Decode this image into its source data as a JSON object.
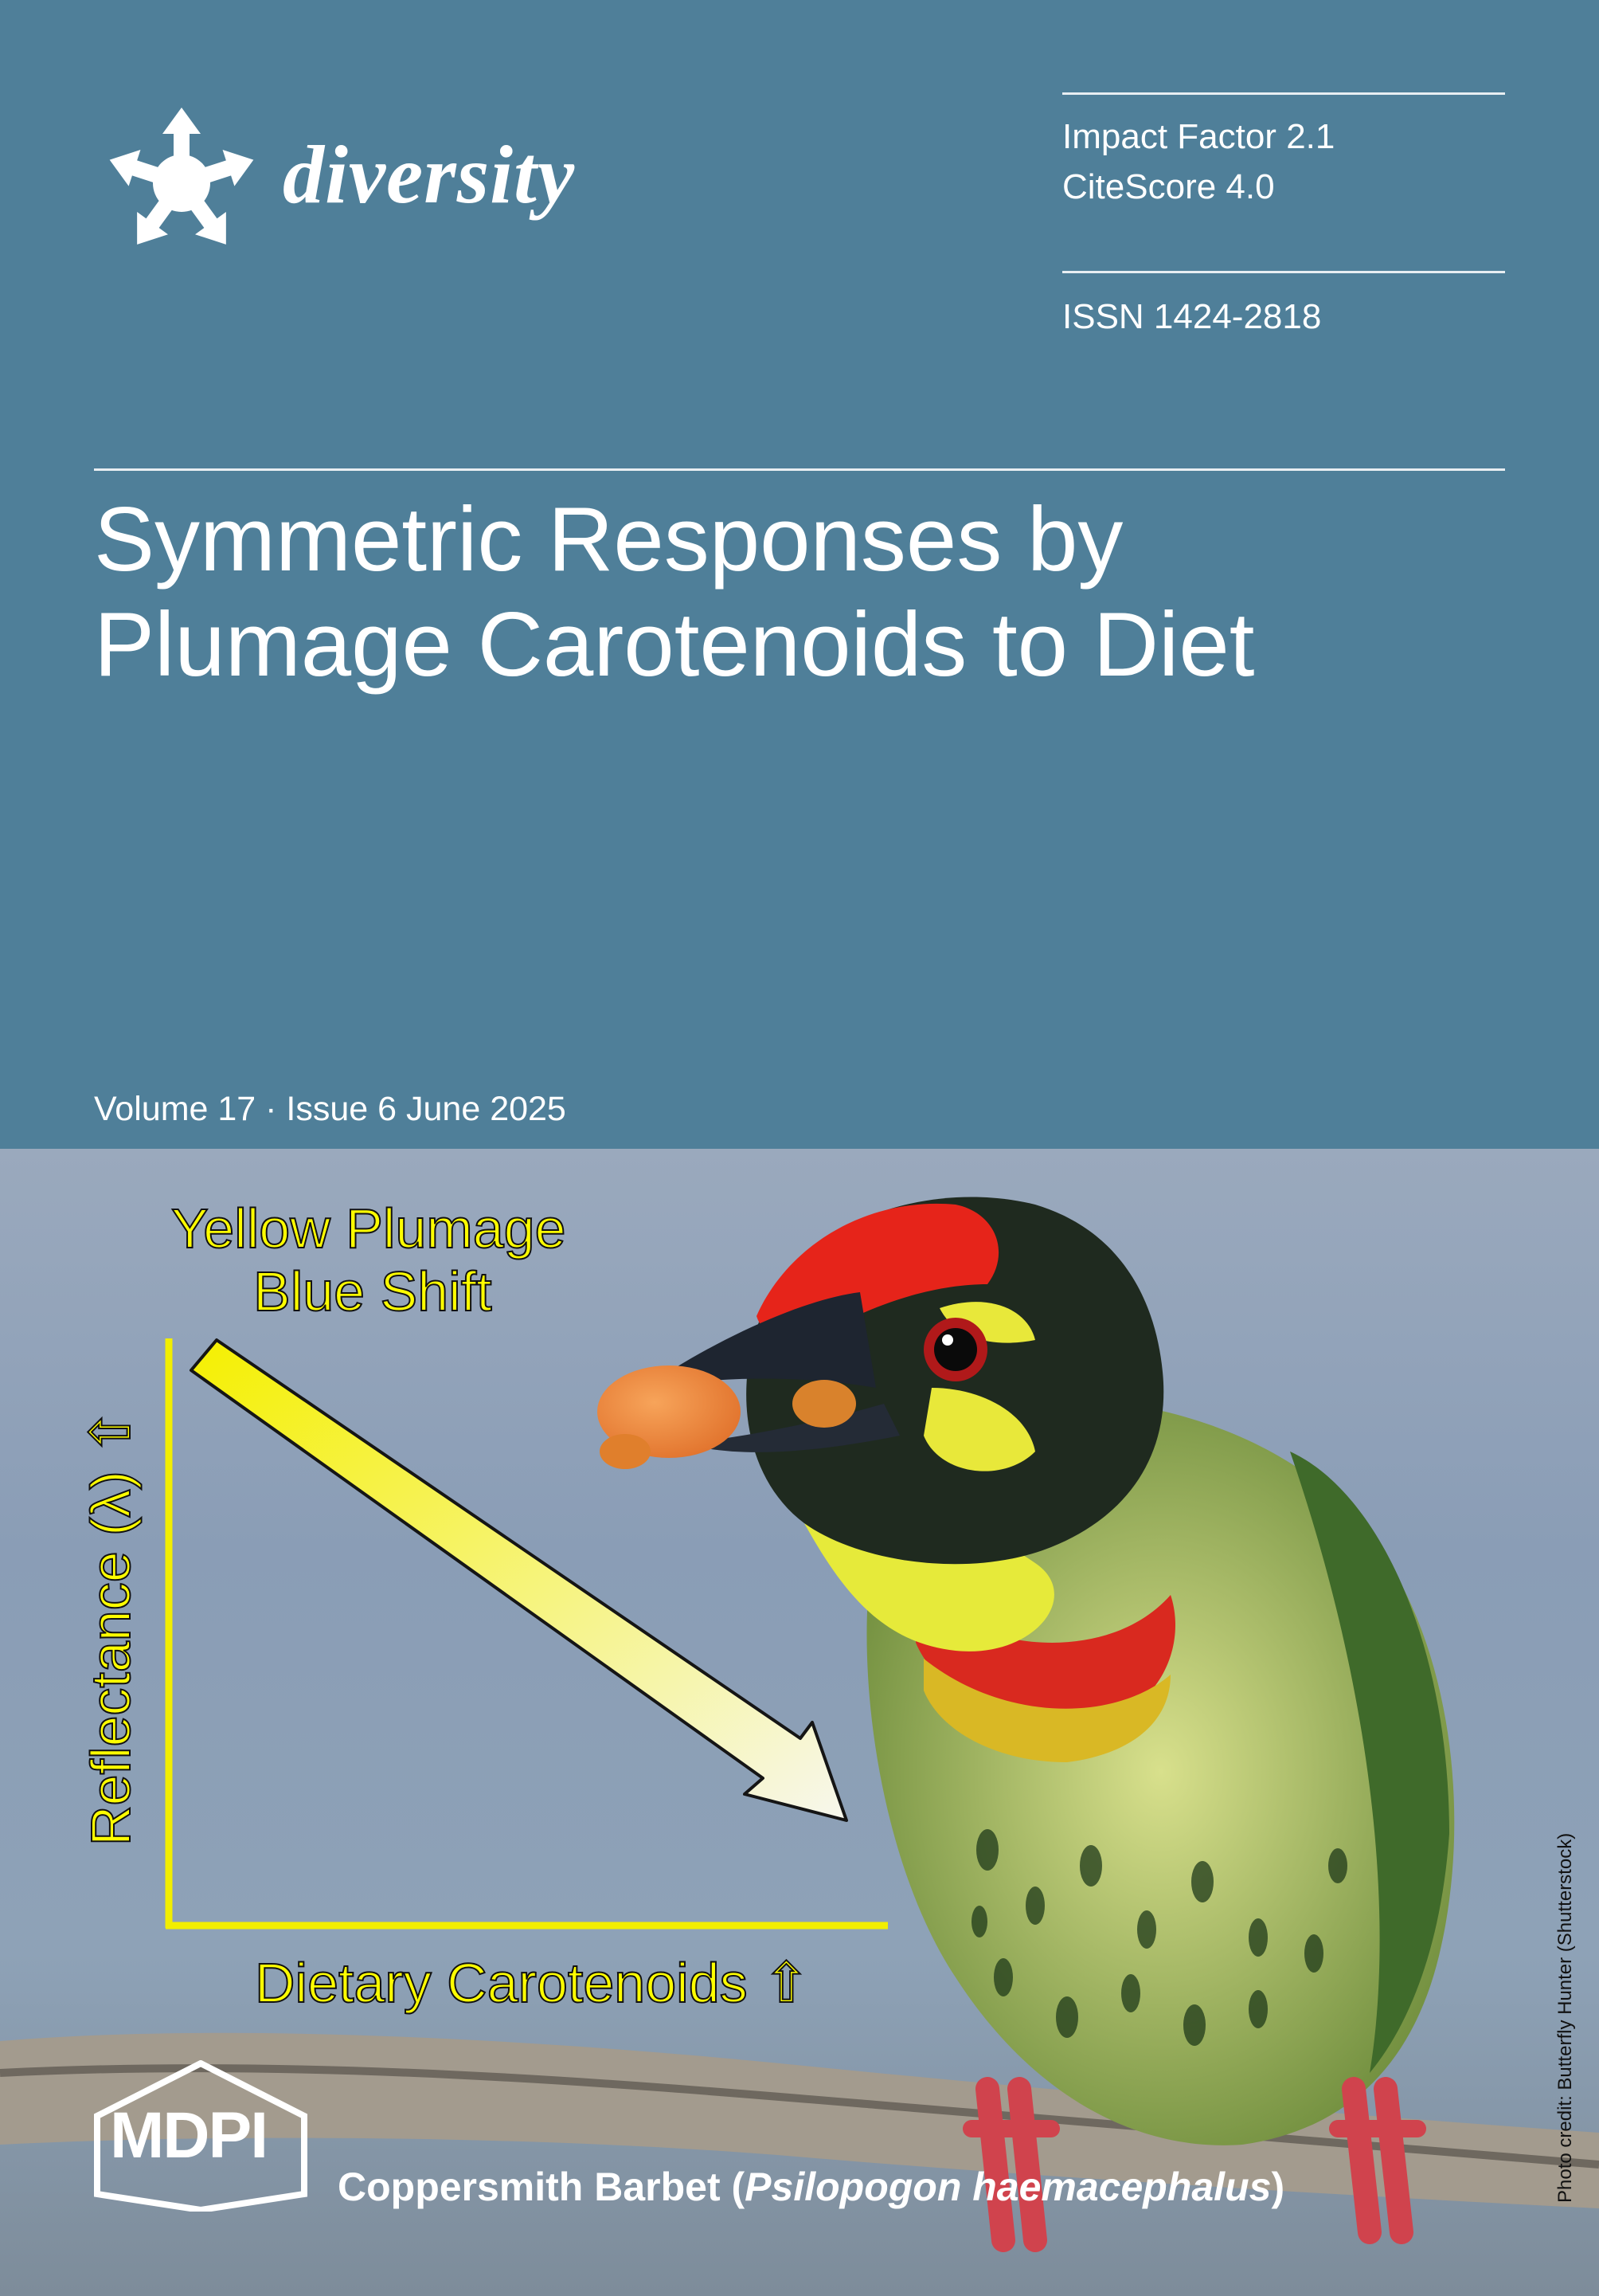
{
  "journal": {
    "name": "diversity",
    "impact_factor": "Impact Factor 2.1",
    "citescore": "CiteScore 4.0",
    "issn": "ISSN 1424-2818"
  },
  "article": {
    "title_line1": "Symmetric Responses by",
    "title_line2": "Plumage Carotenoids to Diet"
  },
  "issue": {
    "volume_line": "Volume 17 · Issue 6 June 2025"
  },
  "figure": {
    "heading_line1": "Yellow Plumage",
    "heading_line2": "Blue Shift",
    "y_label": "Reflectance (λ) ⇧",
    "x_label": "Dietary Carotenoids ⇧",
    "axis_color": "#f2ee00",
    "arrow_color_start": "#f5f000",
    "arrow_color_end": "#f7f7ee"
  },
  "photo": {
    "caption_common": "Coppersmith Barbet (",
    "caption_scientific": "Psilopogon haemacephalus",
    "caption_close": ")",
    "credit": "Photo credit: Butterfly Hunter (Shutterstock)"
  },
  "publisher": {
    "name": "MDPI"
  },
  "colors": {
    "cover_blue": "#4f7f99",
    "text_white": "#ffffff"
  }
}
